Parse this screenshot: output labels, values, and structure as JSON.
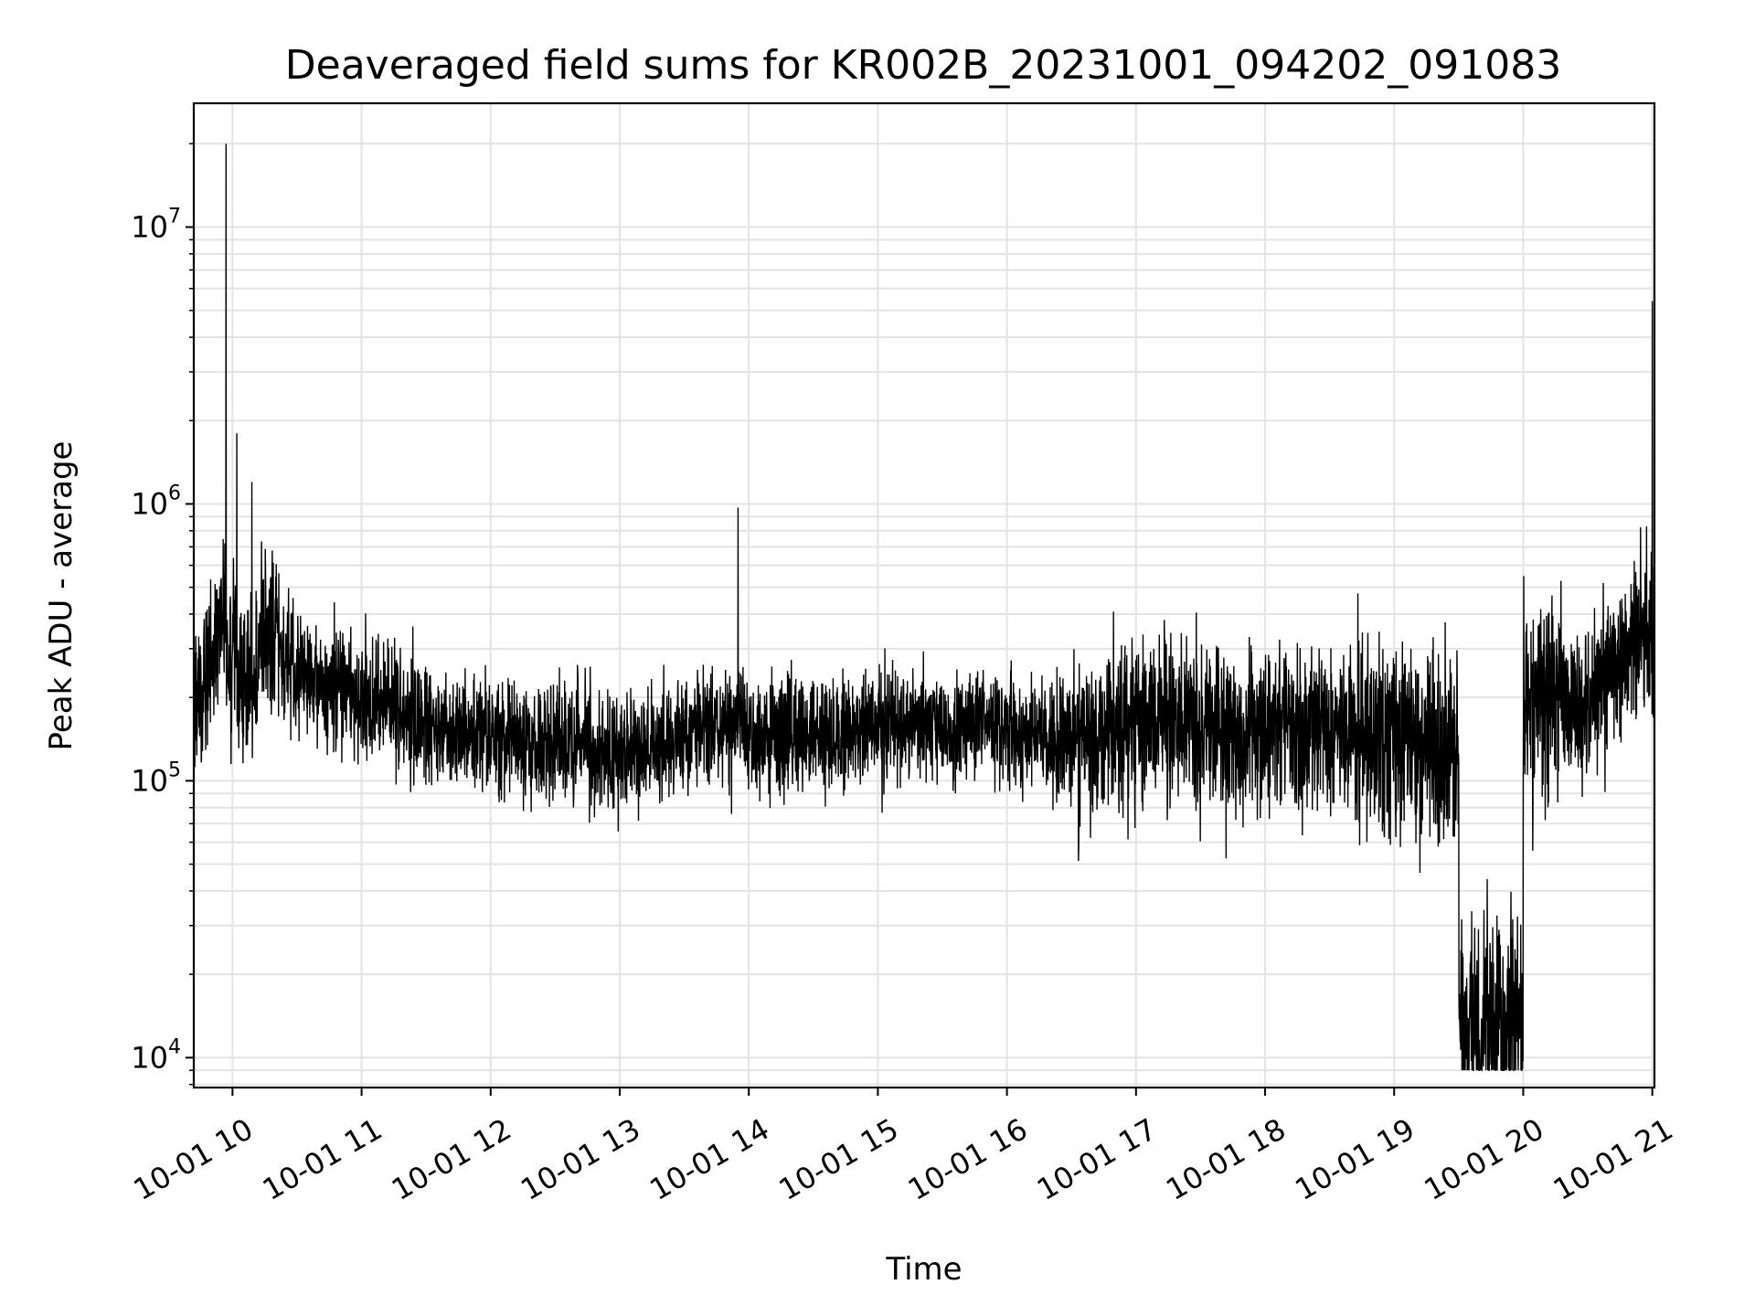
{
  "chart_data": {
    "type": "line",
    "title": "Deaveraged field sums for KR002B_20231001_094202_091083",
    "xlabel": "Time",
    "ylabel": "Peak ADU - average",
    "yscale": "log",
    "ylim": [
      7800,
      28000000
    ],
    "xlim": [
      "2023-10-01 09:42",
      "2023-10-01 21:01"
    ],
    "grid": true,
    "line_color": "#000000",
    "x_ticks": [
      {
        "value": "2023-10-01 10:00",
        "label": "10-01 10"
      },
      {
        "value": "2023-10-01 11:00",
        "label": "10-01 11"
      },
      {
        "value": "2023-10-01 12:00",
        "label": "10-01 12"
      },
      {
        "value": "2023-10-01 13:00",
        "label": "10-01 13"
      },
      {
        "value": "2023-10-01 14:00",
        "label": "10-01 14"
      },
      {
        "value": "2023-10-01 15:00",
        "label": "10-01 15"
      },
      {
        "value": "2023-10-01 16:00",
        "label": "10-01 16"
      },
      {
        "value": "2023-10-01 17:00",
        "label": "10-01 17"
      },
      {
        "value": "2023-10-01 18:00",
        "label": "10-01 18"
      },
      {
        "value": "2023-10-01 19:00",
        "label": "10-01 19"
      },
      {
        "value": "2023-10-01 20:00",
        "label": "10-01 20"
      },
      {
        "value": "2023-10-01 21:00",
        "label": "10-01 21"
      }
    ],
    "y_ticks": [
      {
        "value": 10000,
        "base": "10",
        "exp": "4"
      },
      {
        "value": 100000,
        "base": "10",
        "exp": "5"
      },
      {
        "value": 1000000,
        "base": "10",
        "exp": "6"
      },
      {
        "value": 10000000,
        "base": "10",
        "exp": "7"
      }
    ],
    "series": [
      {
        "x": [
          "2023-10-01 09:42",
          "2023-10-01 09:48",
          "2023-10-01 09:55",
          "2023-10-01 09:57",
          "2023-10-01 10:00",
          "2023-10-01 10:02",
          "2023-10-01 10:05",
          "2023-10-01 10:09",
          "2023-10-01 10:15",
          "2023-10-01 10:30",
          "2023-10-01 11:00",
          "2023-10-01 11:20",
          "2023-10-01 11:30",
          "2023-10-01 12:00",
          "2023-10-01 12:30",
          "2023-10-01 13:00",
          "2023-10-01 13:30",
          "2023-10-01 13:55",
          "2023-10-01 14:00",
          "2023-10-01 14:30",
          "2023-10-01 15:00",
          "2023-10-01 15:30",
          "2023-10-01 16:00",
          "2023-10-01 16:30",
          "2023-10-01 17:00",
          "2023-10-01 17:30",
          "2023-10-01 18:00",
          "2023-10-01 18:30",
          "2023-10-01 19:00",
          "2023-10-01 19:30",
          "2023-10-01 19:55",
          "2023-10-01 20:00",
          "2023-10-01 20:30",
          "2023-10-01 20:50",
          "2023-10-01 21:00",
          "2023-10-01 21:01"
        ],
        "y": [
          170000,
          250000,
          380000,
          20000000,
          300000,
          1800000,
          220000,
          1200000,
          350000,
          250000,
          200000,
          180000,
          160000,
          145000,
          135000,
          130000,
          140000,
          970000,
          140000,
          145000,
          150000,
          160000,
          150000,
          140000,
          170000,
          150000,
          155000,
          150000,
          140000,
          120000,
          12000,
          100000,
          200000,
          320000,
          5400000,
          400000
        ]
      }
    ]
  }
}
